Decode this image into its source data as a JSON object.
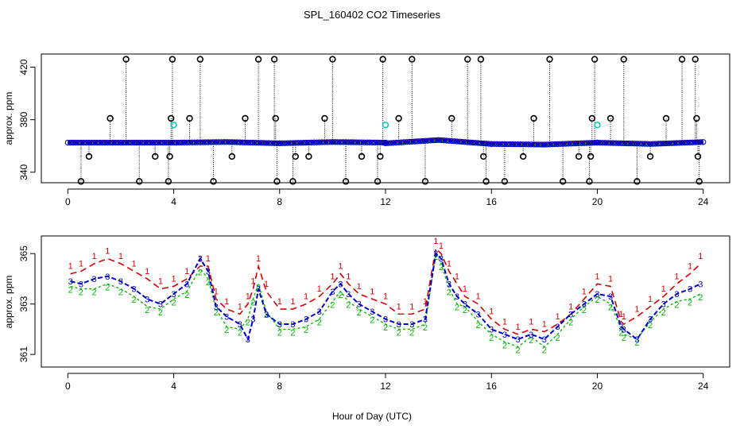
{
  "chart_data": [
    {
      "type": "scatter",
      "title": "SPL_160402  CO2 Timeseries",
      "xlabel": "",
      "ylabel": "approx. ppm",
      "xlim": [
        -1.0,
        25.0
      ],
      "ylim": [
        332,
        430
      ],
      "xticks": [
        0,
        4,
        8,
        12,
        16,
        20,
        24
      ],
      "yticks": [
        340,
        380,
        420
      ],
      "grid": false,
      "baseline_segments": [
        {
          "x": [
            0.0,
            4.0,
            6.0,
            8.0
          ],
          "y": [
            362.5,
            362.5,
            363.0,
            362.0
          ]
        },
        {
          "x": [
            8.0,
            10.0,
            12.0
          ],
          "y": [
            362.0,
            363.0,
            362.5
          ]
        },
        {
          "x": [
            12.0,
            14.0,
            16.0
          ],
          "y": [
            362.0,
            364.5,
            361.5
          ]
        },
        {
          "x": [
            16.0,
            18.0,
            20.0
          ],
          "y": [
            361.5,
            361.0,
            362.5
          ]
        },
        {
          "x": [
            20.0,
            22.0,
            24.0
          ],
          "y": [
            362.5,
            361.5,
            363.0
          ]
        }
      ],
      "spikes": [
        {
          "x": 0.5,
          "y": 333
        },
        {
          "x": 0.8,
          "y": 352
        },
        {
          "x": 1.6,
          "y": 381
        },
        {
          "x": 2.2,
          "y": 426
        },
        {
          "x": 2.7,
          "y": 333
        },
        {
          "x": 3.3,
          "y": 352
        },
        {
          "x": 3.8,
          "y": 333
        },
        {
          "x": 3.85,
          "y": 352
        },
        {
          "x": 3.9,
          "y": 381
        },
        {
          "x": 3.95,
          "y": 426
        },
        {
          "x": 4.6,
          "y": 381
        },
        {
          "x": 5.0,
          "y": 426
        },
        {
          "x": 5.5,
          "y": 333
        },
        {
          "x": 6.2,
          "y": 352
        },
        {
          "x": 6.7,
          "y": 381
        },
        {
          "x": 7.2,
          "y": 426
        },
        {
          "x": 7.8,
          "y": 426
        },
        {
          "x": 7.85,
          "y": 381
        },
        {
          "x": 7.9,
          "y": 333
        },
        {
          "x": 8.5,
          "y": 333
        },
        {
          "x": 8.6,
          "y": 352
        },
        {
          "x": 9.1,
          "y": 352
        },
        {
          "x": 9.7,
          "y": 381
        },
        {
          "x": 10.0,
          "y": 426
        },
        {
          "x": 10.5,
          "y": 333
        },
        {
          "x": 11.1,
          "y": 352
        },
        {
          "x": 11.7,
          "y": 333
        },
        {
          "x": 11.8,
          "y": 352
        },
        {
          "x": 11.9,
          "y": 426
        },
        {
          "x": 12.5,
          "y": 381
        },
        {
          "x": 13.0,
          "y": 426
        },
        {
          "x": 13.5,
          "y": 333
        },
        {
          "x": 14.5,
          "y": 381
        },
        {
          "x": 15.1,
          "y": 426
        },
        {
          "x": 15.6,
          "y": 426
        },
        {
          "x": 15.7,
          "y": 352
        },
        {
          "x": 15.8,
          "y": 333
        },
        {
          "x": 16.5,
          "y": 333
        },
        {
          "x": 17.2,
          "y": 352
        },
        {
          "x": 17.6,
          "y": 381
        },
        {
          "x": 18.2,
          "y": 426
        },
        {
          "x": 18.7,
          "y": 333
        },
        {
          "x": 19.3,
          "y": 352
        },
        {
          "x": 19.7,
          "y": 333
        },
        {
          "x": 19.75,
          "y": 352
        },
        {
          "x": 19.8,
          "y": 381
        },
        {
          "x": 19.9,
          "y": 426
        },
        {
          "x": 20.5,
          "y": 381
        },
        {
          "x": 21.0,
          "y": 426
        },
        {
          "x": 21.5,
          "y": 333
        },
        {
          "x": 22.0,
          "y": 352
        },
        {
          "x": 22.6,
          "y": 381
        },
        {
          "x": 23.2,
          "y": 426
        },
        {
          "x": 23.7,
          "y": 426
        },
        {
          "x": 23.75,
          "y": 381
        },
        {
          "x": 23.8,
          "y": 352
        },
        {
          "x": 23.85,
          "y": 333
        }
      ],
      "cyan_markers": [
        {
          "x": 4.0,
          "y": 376
        },
        {
          "x": 12.0,
          "y": 376
        },
        {
          "x": 20.0,
          "y": 376
        }
      ]
    },
    {
      "type": "line",
      "title": "",
      "xlabel": "Hour of Day (UTC)",
      "ylabel": "approx. ppm",
      "xlim": [
        -1.0,
        25.0
      ],
      "ylim": [
        360.5,
        365.7
      ],
      "xticks": [
        0,
        4,
        8,
        12,
        16,
        20,
        24
      ],
      "yticks": [
        361,
        363,
        365
      ],
      "grid": false,
      "series": [
        {
          "name": "1",
          "marker_label": "1",
          "color": "#dd0000",
          "x": [
            0.1,
            0.5,
            1.0,
            1.5,
            2.0,
            2.5,
            3.0,
            3.5,
            4.0,
            4.5,
            5.0,
            5.3,
            5.6,
            6.0,
            6.5,
            6.8,
            7.0,
            7.2,
            7.5,
            8.0,
            8.5,
            9.0,
            9.5,
            10.0,
            10.3,
            10.6,
            11.0,
            11.5,
            12.0,
            12.5,
            13.0,
            13.5,
            13.9,
            14.1,
            14.4,
            14.7,
            15.0,
            15.5,
            16.0,
            16.5,
            17.0,
            17.5,
            18.0,
            18.5,
            19.0,
            19.5,
            20.0,
            20.5,
            20.9,
            21.0,
            21.5,
            22.0,
            22.5,
            23.0,
            23.5,
            23.9
          ],
          "y": [
            364.2,
            364.3,
            364.6,
            364.8,
            364.6,
            364.3,
            364.0,
            363.6,
            363.7,
            364.0,
            364.5,
            364.5,
            363.2,
            362.8,
            362.6,
            363.0,
            363.6,
            364.5,
            363.5,
            362.8,
            362.8,
            363.0,
            363.3,
            363.8,
            364.2,
            363.8,
            363.4,
            363.2,
            363.0,
            362.6,
            362.6,
            362.8,
            365.2,
            365.0,
            364.3,
            363.8,
            363.3,
            363.0,
            362.4,
            362.0,
            361.8,
            362.0,
            361.9,
            362.2,
            362.6,
            363.2,
            363.8,
            363.7,
            362.3,
            362.2,
            362.5,
            362.9,
            363.3,
            363.8,
            364.2,
            364.6
          ]
        },
        {
          "name": "2",
          "marker_label": "2",
          "color": "#00bb00",
          "x": [
            0.1,
            0.5,
            1.0,
            1.5,
            2.0,
            2.5,
            3.0,
            3.5,
            4.0,
            4.5,
            5.0,
            5.3,
            5.6,
            6.0,
            6.5,
            6.8,
            7.0,
            7.2,
            7.5,
            8.0,
            8.5,
            9.0,
            9.5,
            10.0,
            10.3,
            10.6,
            11.0,
            11.5,
            12.0,
            12.5,
            13.0,
            13.5,
            13.9,
            14.1,
            14.4,
            14.7,
            15.0,
            15.5,
            16.0,
            16.5,
            17.0,
            17.5,
            18.0,
            18.5,
            19.0,
            19.5,
            20.0,
            20.5,
            20.9,
            21.0,
            21.5,
            22.0,
            22.5,
            23.0,
            23.5,
            23.9
          ],
          "y": [
            363.7,
            363.6,
            363.6,
            363.8,
            363.6,
            363.3,
            362.9,
            362.8,
            363.2,
            363.5,
            364.4,
            364.0,
            362.8,
            362.1,
            362.0,
            362.4,
            363.2,
            363.8,
            362.7,
            362.0,
            362.0,
            362.1,
            362.4,
            363.1,
            363.5,
            363.1,
            362.8,
            362.5,
            362.2,
            362.0,
            362.0,
            362.2,
            365.0,
            364.6,
            363.6,
            363.0,
            362.9,
            362.3,
            361.8,
            361.5,
            361.3,
            361.7,
            361.3,
            361.8,
            362.4,
            362.9,
            363.3,
            363.0,
            362.0,
            361.8,
            361.6,
            362.3,
            362.8,
            363.1,
            363.2,
            363.4
          ]
        },
        {
          "name": "3",
          "marker_label": "3",
          "color": "#0000cc",
          "x": [
            0.1,
            0.5,
            1.0,
            1.5,
            2.0,
            2.5,
            3.0,
            3.5,
            4.0,
            4.5,
            5.0,
            5.3,
            5.6,
            6.0,
            6.5,
            6.8,
            7.0,
            7.2,
            7.5,
            8.0,
            8.5,
            9.0,
            9.5,
            10.0,
            10.3,
            10.6,
            11.0,
            11.5,
            12.0,
            12.5,
            13.0,
            13.5,
            13.9,
            14.1,
            14.4,
            14.7,
            15.0,
            15.5,
            16.0,
            16.5,
            17.0,
            17.5,
            18.0,
            18.5,
            19.0,
            19.5,
            20.0,
            20.5,
            20.9,
            21.0,
            21.5,
            22.0,
            22.5,
            23.0,
            23.5,
            23.9
          ],
          "y": [
            363.9,
            363.8,
            364.0,
            364.1,
            363.9,
            363.6,
            363.2,
            363.0,
            363.4,
            363.8,
            364.8,
            364.3,
            362.9,
            362.5,
            362.2,
            361.6,
            362.4,
            363.6,
            362.6,
            362.2,
            362.2,
            362.4,
            362.7,
            363.5,
            363.8,
            363.4,
            363.0,
            362.7,
            362.4,
            362.2,
            362.2,
            362.4,
            365.0,
            364.8,
            363.8,
            363.3,
            363.0,
            362.6,
            362.0,
            361.8,
            361.6,
            361.8,
            361.6,
            362.1,
            362.6,
            363.0,
            363.4,
            363.3,
            362.1,
            362.0,
            361.6,
            362.4,
            363.0,
            363.4,
            363.6,
            363.8
          ]
        }
      ]
    }
  ]
}
